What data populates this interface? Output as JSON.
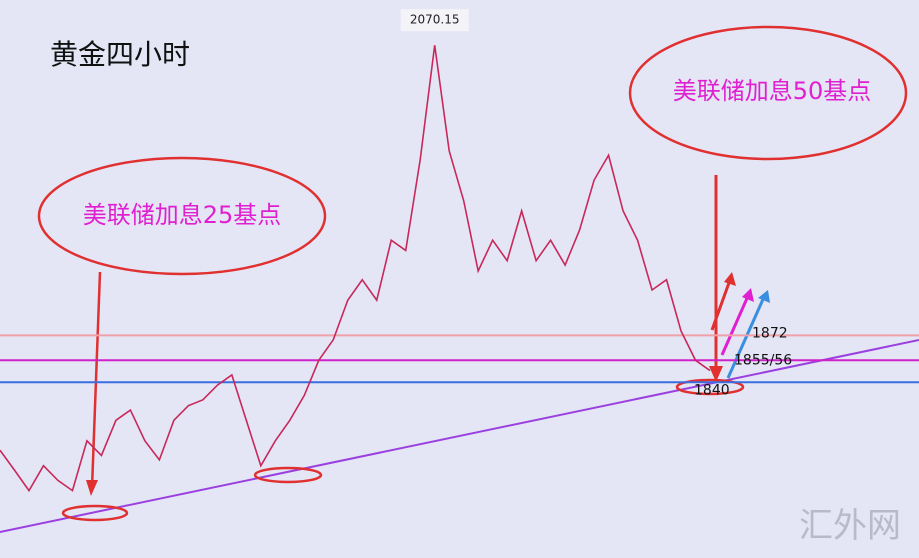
{
  "chart_data": {
    "type": "line",
    "title": "黄金四小时",
    "ylim": [
      1720,
      2101
    ],
    "series": [
      {
        "color": "#c8285a",
        "values": [
          1793.6,
          1780,
          1766,
          1783,
          1773,
          1766,
          1800,
          1790,
          1814,
          1821,
          1800,
          1787,
          1814,
          1824,
          1828,
          1838,
          1845,
          1814,
          1783,
          1800,
          1814,
          1831,
          1855,
          1869,
          1896,
          1910,
          1896,
          1937,
          1930,
          1992,
          2070.15,
          1998,
          1964,
          1916,
          1937,
          1923,
          1957,
          1923,
          1937,
          1920,
          1944,
          1978,
          1995,
          1957,
          1937,
          1903,
          1910,
          1875,
          1855,
          1848
        ]
      }
    ],
    "peak_index": 30,
    "levels": [
      {
        "value": 1872,
        "color": "#f0a0a8"
      },
      {
        "value": 1855,
        "label": "1855/56",
        "color": "#d020c8"
      },
      {
        "value": 1840,
        "color": "#3a6ee0"
      }
    ],
    "callouts": [
      "美联储加息25基点",
      "美联储加息50基点"
    ],
    "watermark": "汇外网"
  }
}
